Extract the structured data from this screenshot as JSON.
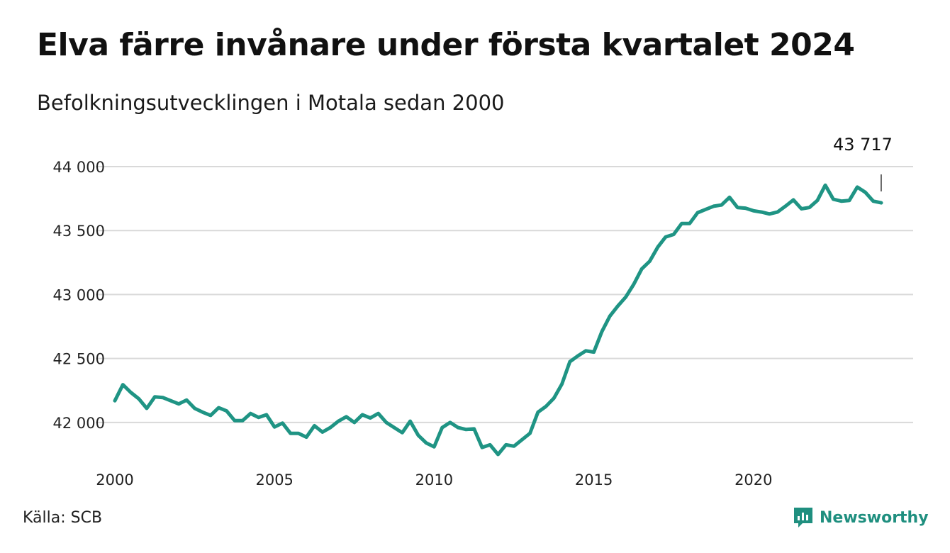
{
  "title": "Elva färre invånare under första kvartalet 2024",
  "subtitle": "Befolkningsutvecklingen i Motala sedan 2000",
  "source": "Källa: SCB",
  "brand": {
    "name": "Newsworthy",
    "icon": "newsworthy-logo-icon",
    "color": "#1f8f7f"
  },
  "chart_data": {
    "type": "line",
    "line_color": "#1f9484",
    "grid": true,
    "ylim": [
      41700,
      44000
    ],
    "yticks": [
      42000,
      42500,
      43000,
      43500,
      44000
    ],
    "ytick_labels": [
      "42 000",
      "42 500",
      "43 000",
      "43 500",
      "44 000"
    ],
    "xlim": [
      2000.0,
      2024.75
    ],
    "xticks": [
      2000,
      2005,
      2010,
      2015,
      2020
    ],
    "xtick_labels": [
      "2000",
      "2005",
      "2010",
      "2015",
      "2020"
    ],
    "end_label": "43 717",
    "series": [
      {
        "x": [
          2000.0,
          2000.25,
          2000.5,
          2000.75,
          2001.0,
          2001.25,
          2001.5,
          2001.75,
          2002.0,
          2002.25,
          2002.5,
          2002.75,
          2003.0,
          2003.25,
          2003.5,
          2003.75,
          2004.0,
          2004.25,
          2004.5,
          2004.75,
          2005.0,
          2005.25,
          2005.5,
          2005.75,
          2006.0,
          2006.25,
          2006.5,
          2006.75,
          2007.0,
          2007.25,
          2007.5,
          2007.75,
          2008.0,
          2008.25,
          2008.5,
          2008.75,
          2009.0,
          2009.25,
          2009.5,
          2009.75,
          2010.0,
          2010.25,
          2010.5,
          2010.75,
          2011.0,
          2011.25,
          2011.5,
          2011.75,
          2012.0,
          2012.25,
          2012.5,
          2012.75,
          2013.0,
          2013.25,
          2013.5,
          2013.75,
          2014.0,
          2014.25,
          2014.5,
          2014.75,
          2015.0,
          2015.25,
          2015.5,
          2015.75,
          2016.0,
          2016.25,
          2016.5,
          2016.75,
          2017.0,
          2017.25,
          2017.5,
          2017.75,
          2018.0,
          2018.25,
          2018.5,
          2018.75,
          2019.0,
          2019.25,
          2019.5,
          2019.75,
          2020.0,
          2020.25,
          2020.5,
          2020.75,
          2021.0,
          2021.25,
          2021.5,
          2021.75,
          2022.0,
          2022.25,
          2022.5,
          2022.75,
          2023.0,
          2023.25,
          2023.5,
          2023.75,
          2024.0
        ],
        "values": [
          42170,
          42295,
          42235,
          42185,
          42110,
          42200,
          42195,
          42170,
          42145,
          42175,
          42110,
          42080,
          42055,
          42115,
          42090,
          42015,
          42015,
          42070,
          42040,
          42060,
          41965,
          41995,
          41915,
          41915,
          41885,
          41975,
          41925,
          41960,
          42010,
          42045,
          42000,
          42060,
          42035,
          42070,
          42000,
          41960,
          41920,
          42010,
          41900,
          41840,
          41810,
          41960,
          42000,
          41960,
          41945,
          41950,
          41805,
          41825,
          41750,
          41825,
          41815,
          41865,
          41915,
          42080,
          42125,
          42190,
          42300,
          42475,
          42520,
          42560,
          42550,
          42710,
          42830,
          42910,
          42980,
          43080,
          43200,
          43260,
          43370,
          43450,
          43470,
          43555,
          43555,
          43640,
          43665,
          43690,
          43700,
          43760,
          43680,
          43675,
          43655,
          43645,
          43630,
          43645,
          43690,
          43740,
          43670,
          43680,
          43735,
          43855,
          43745,
          43730,
          43735,
          43840,
          43800,
          43730,
          43717
        ]
      }
    ]
  }
}
